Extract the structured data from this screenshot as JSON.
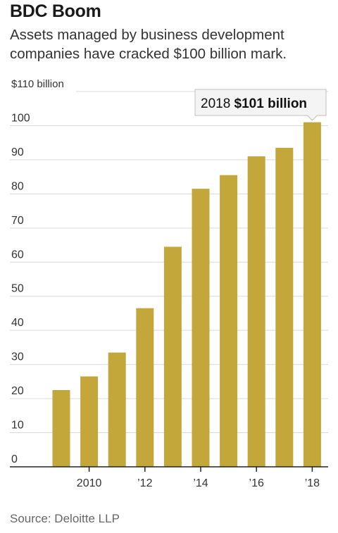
{
  "chart_data": {
    "type": "bar",
    "title": "BDC Boom",
    "subtitle": "Assets managed by business development companies have cracked $100 billion mark.",
    "categories": [
      "2009",
      "2010",
      "2011",
      "2012",
      "2013",
      "2014",
      "2015",
      "2016",
      "2017",
      "2018"
    ],
    "values": [
      22.5,
      26.5,
      33.5,
      46.5,
      64.5,
      81.5,
      85.5,
      91,
      93.5,
      101
    ],
    "ylim": [
      0,
      110
    ],
    "y_ticks": [
      "$110 billion",
      "100",
      "90",
      "80",
      "70",
      "60",
      "50",
      "40",
      "30",
      "20",
      "10",
      "0"
    ],
    "x_ticks": [
      {
        "category": "2010",
        "label": "2010"
      },
      {
        "category": "2012",
        "label": "’12"
      },
      {
        "category": "2014",
        "label": "’14"
      },
      {
        "category": "2016",
        "label": "’16"
      },
      {
        "category": "2018",
        "label": "’18"
      }
    ],
    "annotation": {
      "category": "2018",
      "year": "2018",
      "value": "$101 billion"
    },
    "grid": true,
    "bar_color": "#c4a73b",
    "source": "Source: Deloitte LLP"
  }
}
